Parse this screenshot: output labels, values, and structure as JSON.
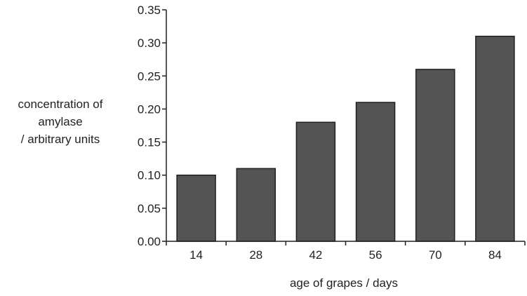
{
  "chart_data": {
    "type": "bar",
    "categories": [
      "14",
      "28",
      "42",
      "56",
      "70",
      "84"
    ],
    "values": [
      0.1,
      0.11,
      0.18,
      0.21,
      0.26,
      0.31
    ],
    "ylim": [
      0,
      0.35
    ],
    "yticks": [
      "0.00",
      "0.05",
      "0.10",
      "0.15",
      "0.20",
      "0.25",
      "0.30",
      "0.35"
    ],
    "ylabel_lines": [
      "concentration of",
      "amylase",
      "/ arbitrary units"
    ],
    "xlabel": "age of grapes / days",
    "grid": false,
    "bar_color": "#545454",
    "bar_edge_color": "#231f20"
  }
}
